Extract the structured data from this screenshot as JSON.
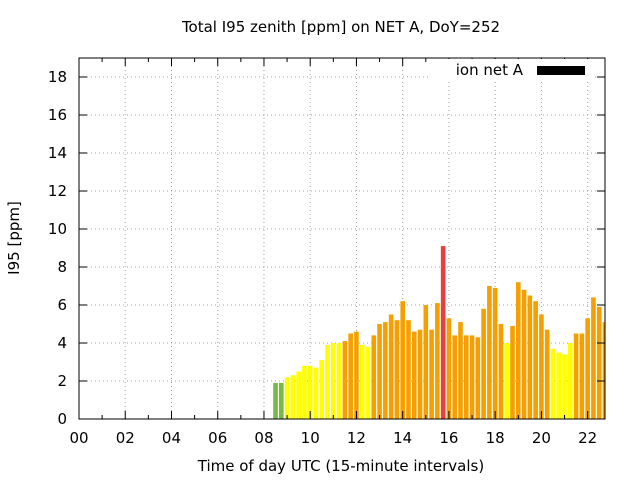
{
  "chart_data": {
    "type": "bar",
    "title": "Total I95 zenith [ppm] on NET A, DoY=252",
    "xlabel": "Time of day UTC (15-minute intervals)",
    "ylabel": "I95 [ppm]",
    "xlim": [
      0,
      22.75
    ],
    "ylim": [
      0,
      19
    ],
    "grid": true,
    "legend": {
      "position": "top-right",
      "label": "ion net A",
      "color": "#000000"
    },
    "x_ticks": [
      {
        "value": 0,
        "label": "00"
      },
      {
        "value": 2,
        "label": "02"
      },
      {
        "value": 4,
        "label": "04"
      },
      {
        "value": 6,
        "label": "06"
      },
      {
        "value": 8,
        "label": "08"
      },
      {
        "value": 10,
        "label": "10"
      },
      {
        "value": 12,
        "label": "12"
      },
      {
        "value": 14,
        "label": "14"
      },
      {
        "value": 16,
        "label": "16"
      },
      {
        "value": 18,
        "label": "18"
      },
      {
        "value": 20,
        "label": "20"
      },
      {
        "value": 22,
        "label": "22"
      }
    ],
    "y_ticks": [
      {
        "value": 0,
        "label": "0"
      },
      {
        "value": 2,
        "label": "2"
      },
      {
        "value": 4,
        "label": "4"
      },
      {
        "value": 6,
        "label": "6"
      },
      {
        "value": 8,
        "label": "8"
      },
      {
        "value": 10,
        "label": "10"
      },
      {
        "value": 12,
        "label": "12"
      },
      {
        "value": 14,
        "label": "14"
      },
      {
        "value": 16,
        "label": "16"
      },
      {
        "value": 18,
        "label": "18"
      }
    ],
    "bar_width_hours": 0.2,
    "colors": {
      "green": "#77bb44",
      "yellow": "#ffff00",
      "orange": "#f5a000",
      "red": "#e84040"
    },
    "points": [
      {
        "x": 8.5,
        "y": 1.9,
        "c": "green"
      },
      {
        "x": 8.75,
        "y": 1.9,
        "c": "green"
      },
      {
        "x": 9.0,
        "y": 2.2,
        "c": "yellow"
      },
      {
        "x": 9.25,
        "y": 2.3,
        "c": "yellow"
      },
      {
        "x": 9.5,
        "y": 2.5,
        "c": "yellow"
      },
      {
        "x": 9.75,
        "y": 2.8,
        "c": "yellow"
      },
      {
        "x": 10.0,
        "y": 2.8,
        "c": "yellow"
      },
      {
        "x": 10.25,
        "y": 2.7,
        "c": "yellow"
      },
      {
        "x": 10.5,
        "y": 3.1,
        "c": "yellow"
      },
      {
        "x": 10.75,
        "y": 3.9,
        "c": "yellow"
      },
      {
        "x": 11.0,
        "y": 4.0,
        "c": "yellow"
      },
      {
        "x": 11.25,
        "y": 4.0,
        "c": "yellow"
      },
      {
        "x": 11.5,
        "y": 4.1,
        "c": "orange"
      },
      {
        "x": 11.75,
        "y": 4.5,
        "c": "orange"
      },
      {
        "x": 12.0,
        "y": 4.6,
        "c": "orange"
      },
      {
        "x": 12.25,
        "y": 3.9,
        "c": "yellow"
      },
      {
        "x": 12.5,
        "y": 3.8,
        "c": "yellow"
      },
      {
        "x": 12.75,
        "y": 4.4,
        "c": "orange"
      },
      {
        "x": 13.0,
        "y": 5.0,
        "c": "orange"
      },
      {
        "x": 13.25,
        "y": 5.1,
        "c": "orange"
      },
      {
        "x": 13.5,
        "y": 5.5,
        "c": "orange"
      },
      {
        "x": 13.75,
        "y": 5.2,
        "c": "orange"
      },
      {
        "x": 14.0,
        "y": 6.2,
        "c": "orange"
      },
      {
        "x": 14.25,
        "y": 5.2,
        "c": "orange"
      },
      {
        "x": 14.5,
        "y": 4.6,
        "c": "orange"
      },
      {
        "x": 14.75,
        "y": 4.7,
        "c": "orange"
      },
      {
        "x": 15.0,
        "y": 6.0,
        "c": "orange"
      },
      {
        "x": 15.25,
        "y": 4.7,
        "c": "orange"
      },
      {
        "x": 15.5,
        "y": 6.1,
        "c": "orange"
      },
      {
        "x": 15.75,
        "y": 9.1,
        "c": "red"
      },
      {
        "x": 16.0,
        "y": 5.3,
        "c": "orange"
      },
      {
        "x": 16.25,
        "y": 4.4,
        "c": "orange"
      },
      {
        "x": 16.5,
        "y": 5.1,
        "c": "orange"
      },
      {
        "x": 16.75,
        "y": 4.4,
        "c": "orange"
      },
      {
        "x": 17.0,
        "y": 4.4,
        "c": "orange"
      },
      {
        "x": 17.25,
        "y": 4.3,
        "c": "orange"
      },
      {
        "x": 17.5,
        "y": 5.8,
        "c": "orange"
      },
      {
        "x": 17.75,
        "y": 7.0,
        "c": "orange"
      },
      {
        "x": 18.0,
        "y": 6.9,
        "c": "orange"
      },
      {
        "x": 18.25,
        "y": 5.0,
        "c": "orange"
      },
      {
        "x": 18.5,
        "y": 4.0,
        "c": "yellow"
      },
      {
        "x": 18.75,
        "y": 4.9,
        "c": "orange"
      },
      {
        "x": 19.0,
        "y": 7.2,
        "c": "orange"
      },
      {
        "x": 19.25,
        "y": 6.8,
        "c": "orange"
      },
      {
        "x": 19.5,
        "y": 6.5,
        "c": "orange"
      },
      {
        "x": 19.75,
        "y": 6.2,
        "c": "orange"
      },
      {
        "x": 20.0,
        "y": 5.5,
        "c": "orange"
      },
      {
        "x": 20.25,
        "y": 4.7,
        "c": "orange"
      },
      {
        "x": 20.5,
        "y": 3.7,
        "c": "yellow"
      },
      {
        "x": 20.75,
        "y": 3.5,
        "c": "yellow"
      },
      {
        "x": 21.0,
        "y": 3.4,
        "c": "yellow"
      },
      {
        "x": 21.25,
        "y": 4.0,
        "c": "yellow"
      },
      {
        "x": 21.5,
        "y": 4.5,
        "c": "orange"
      },
      {
        "x": 21.75,
        "y": 4.5,
        "c": "orange"
      },
      {
        "x": 22.0,
        "y": 5.3,
        "c": "orange"
      },
      {
        "x": 22.25,
        "y": 6.4,
        "c": "orange"
      },
      {
        "x": 22.5,
        "y": 5.9,
        "c": "orange"
      },
      {
        "x": 22.75,
        "y": 5.1,
        "c": "orange"
      }
    ]
  }
}
